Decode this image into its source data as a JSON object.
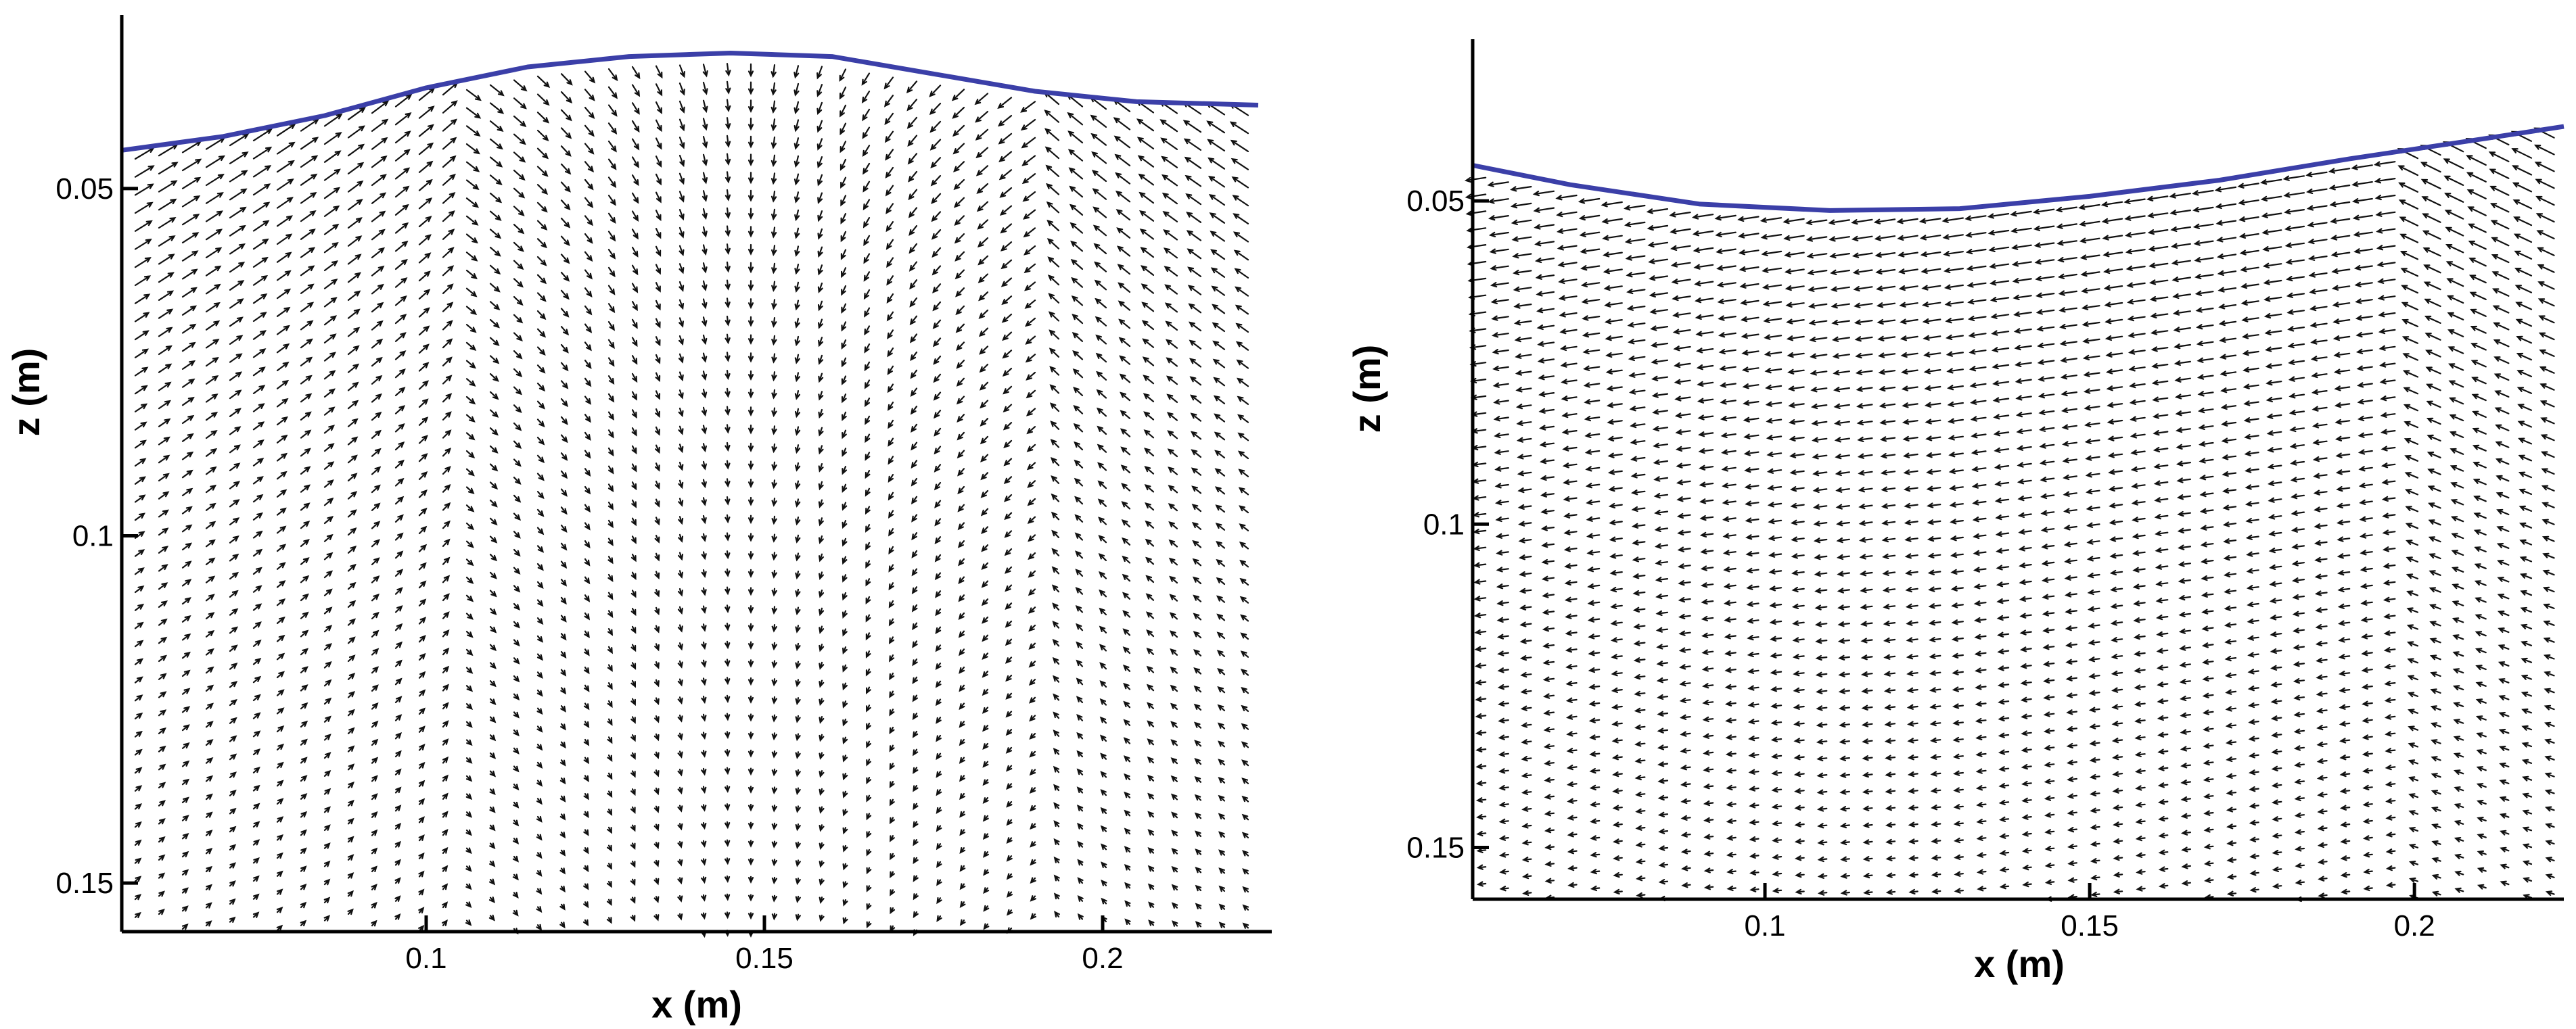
{
  "colors": {
    "free_surface": "#3b3fa8",
    "vectors": "#111111",
    "axes": "#000000"
  },
  "chart_data": [
    {
      "type": "vector_field",
      "panel": "left",
      "xlabel": "x (m)",
      "ylabel": "z (m)",
      "xlim": [
        0.055,
        0.225
      ],
      "ylim": [
        0.157,
        0.025
      ],
      "y_inverted": true,
      "xticks": [
        0.1,
        0.15,
        0.2
      ],
      "xtick_labels": [
        "0.1",
        "0.15",
        "0.2"
      ],
      "yticks": [
        0.05,
        0.1,
        0.15
      ],
      "ytick_labels": [
        "0.05",
        "0.1",
        "0.15"
      ],
      "grid": false,
      "free_surface": {
        "x": [
          0.055,
          0.07,
          0.085,
          0.1,
          0.115,
          0.13,
          0.145,
          0.16,
          0.175,
          0.19,
          0.205,
          0.223
        ],
        "z": [
          0.0445,
          0.0425,
          0.0395,
          0.0355,
          0.0325,
          0.031,
          0.0305,
          0.031,
          0.0335,
          0.036,
          0.0375,
          0.038
        ]
      }
    },
    {
      "type": "vector_field",
      "panel": "right",
      "xlabel": "x (m)",
      "ylabel": "z (m)",
      "xlim": [
        0.055,
        0.223
      ],
      "ylim": [
        0.158,
        0.025
      ],
      "y_inverted": true,
      "xticks": [
        0.1,
        0.15,
        0.2
      ],
      "xtick_labels": [
        "0.1",
        "0.15",
        "0.2"
      ],
      "yticks": [
        0.05,
        0.1,
        0.15
      ],
      "ytick_labels": [
        "0.05",
        "0.1",
        "0.15"
      ],
      "grid": false,
      "free_surface": {
        "x": [
          0.055,
          0.07,
          0.09,
          0.11,
          0.13,
          0.15,
          0.17,
          0.19,
          0.21,
          0.223
        ],
        "z": [
          0.0445,
          0.0475,
          0.0505,
          0.0515,
          0.0512,
          0.0493,
          0.0468,
          0.0435,
          0.0405,
          0.0385
        ]
      }
    }
  ]
}
